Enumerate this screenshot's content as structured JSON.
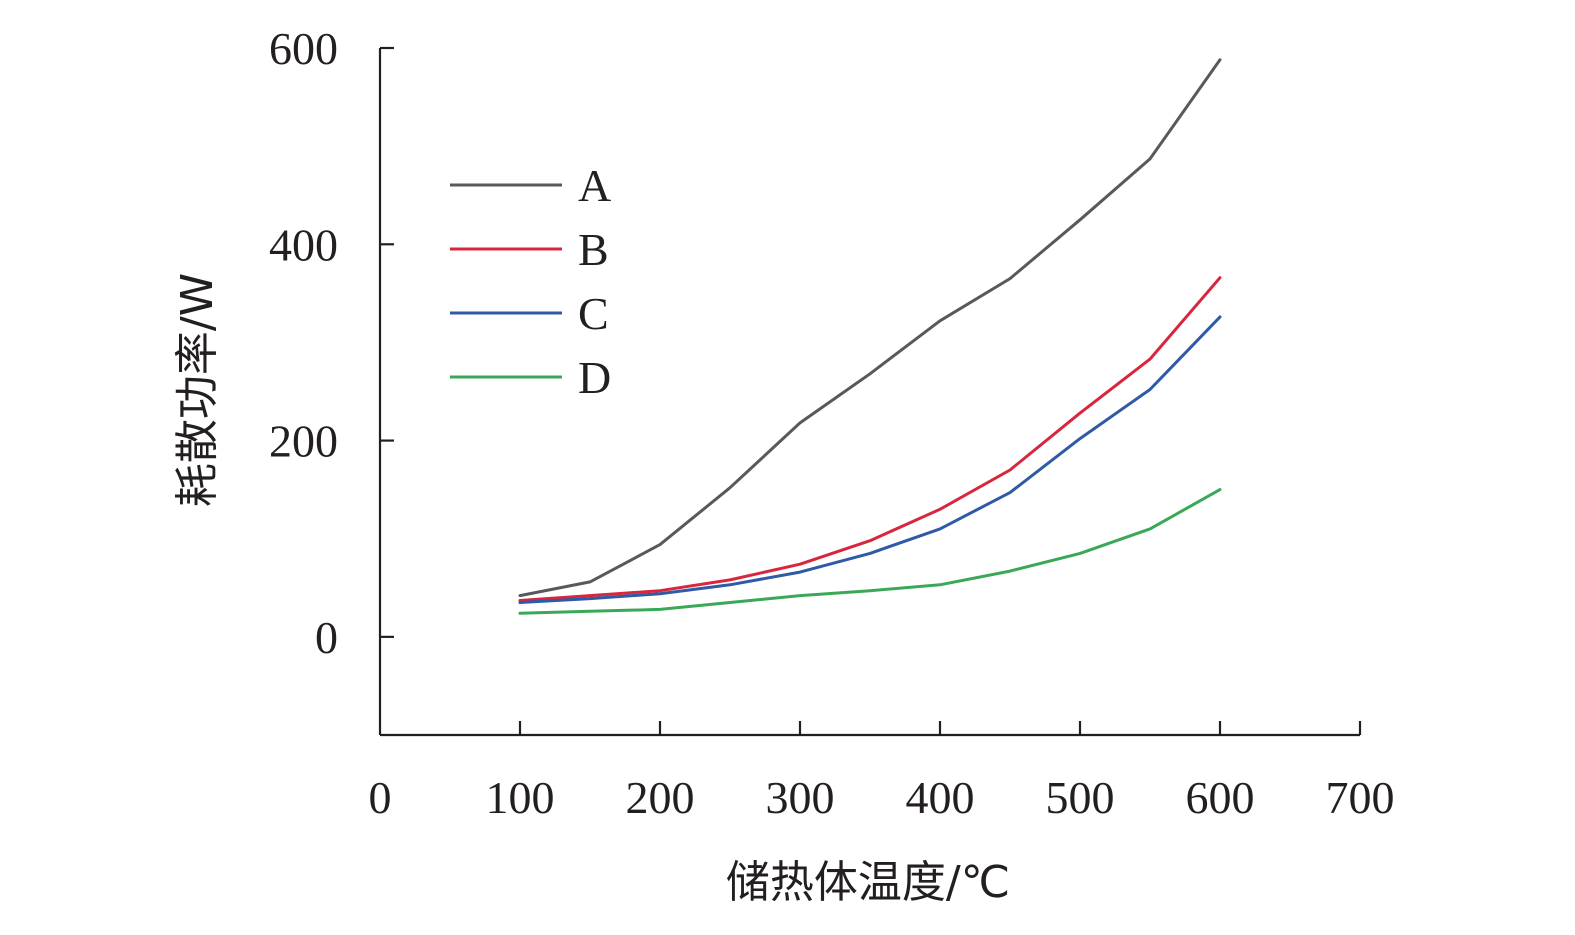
{
  "chart_data": {
    "type": "line",
    "xlabel": "储热体温度/℃",
    "ylabel": "耗散功率/W",
    "xlim": [
      0,
      700
    ],
    "ylim": [
      -100,
      600
    ],
    "x_ticks": [
      0,
      100,
      200,
      300,
      400,
      500,
      600,
      700
    ],
    "y_ticks": [
      0,
      200,
      400,
      600
    ],
    "legend_position": "upper-left",
    "grid": false,
    "x": [
      100,
      150,
      200,
      250,
      300,
      350,
      400,
      450,
      500,
      550,
      600
    ],
    "series": [
      {
        "name": "A",
        "color": "#58595b",
        "values": [
          42,
          56,
          94,
          152,
          218,
          268,
          322,
          365,
          425,
          487,
          588
        ]
      },
      {
        "name": "B",
        "color": "#d7263d",
        "values": [
          37,
          42,
          47,
          58,
          74,
          98,
          130,
          170,
          228,
          283,
          366
        ]
      },
      {
        "name": "C",
        "color": "#2e5aa8",
        "values": [
          35,
          39,
          44,
          53,
          66,
          85,
          110,
          147,
          202,
          252,
          326
        ]
      },
      {
        "name": "D",
        "color": "#3aa856",
        "values": [
          24,
          26,
          28,
          35,
          42,
          47,
          53,
          67,
          85,
          110,
          150
        ]
      }
    ]
  }
}
